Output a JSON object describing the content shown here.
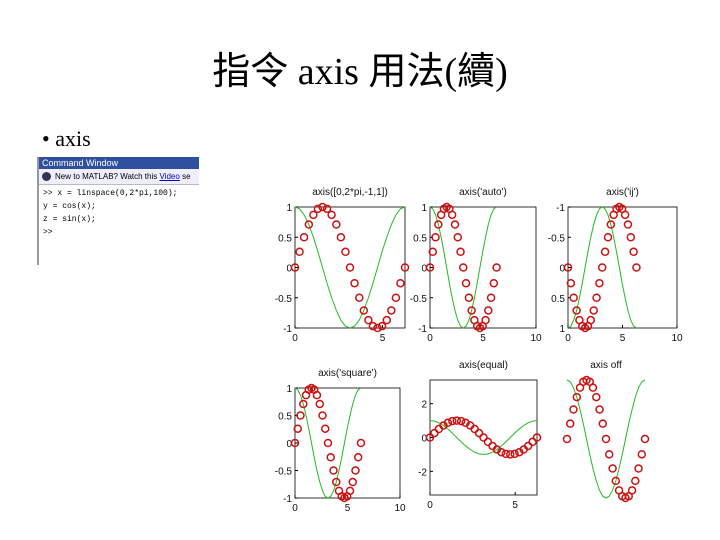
{
  "slide": {
    "title": "指令 axis 用法(續)",
    "bullet": "axis"
  },
  "command_window": {
    "title": "Command Window",
    "notice": "New to MATLAB? Watch this",
    "link": "Video",
    "link_after": "se",
    "lines": [
      ">> x = linspace(0,2*pi,100);",
      "y = cos(x);",
      "z = sin(x);",
      ">>"
    ]
  },
  "chart_data": [
    {
      "type": "line",
      "title": "axis([0,2*pi,-1,1])",
      "x": [
        0,
        0.26,
        0.52,
        0.79,
        1.05,
        1.31,
        1.57,
        1.83,
        2.09,
        2.36,
        2.62,
        2.88,
        3.14,
        3.4,
        3.67,
        3.93,
        4.19,
        4.45,
        4.71,
        4.97,
        5.24,
        5.5,
        5.76,
        6.02,
        6.28
      ],
      "series": [
        {
          "color": "#22bb22",
          "style": "line",
          "values": [
            1,
            0.97,
            0.87,
            0.71,
            0.5,
            0.26,
            0,
            -0.26,
            -0.5,
            -0.71,
            -0.87,
            -0.97,
            -1,
            -0.97,
            -0.87,
            -0.71,
            -0.5,
            -0.26,
            0,
            0.26,
            0.5,
            0.71,
            0.87,
            0.97,
            1
          ]
        },
        {
          "color": "#cc1111",
          "style": "circle",
          "values": [
            0,
            0.26,
            0.5,
            0.71,
            0.87,
            0.97,
            1,
            0.97,
            0.87,
            0.71,
            0.5,
            0.26,
            0,
            -0.26,
            -0.5,
            -0.71,
            -0.87,
            -0.97,
            -1,
            -0.97,
            -0.87,
            -0.71,
            -0.5,
            -0.26,
            0
          ]
        }
      ],
      "xlim": [
        0,
        6.28
      ],
      "ylim": [
        -1,
        1
      ],
      "xticks": [
        0,
        5
      ],
      "yticks": [
        -1,
        -0.5,
        0,
        0.5,
        1
      ],
      "y_reversed": false,
      "axis_visible": true
    },
    {
      "type": "line",
      "title": "axis('auto')",
      "x": [
        0,
        0.26,
        0.52,
        0.79,
        1.05,
        1.31,
        1.57,
        1.83,
        2.09,
        2.36,
        2.62,
        2.88,
        3.14,
        3.4,
        3.67,
        3.93,
        4.19,
        4.45,
        4.71,
        4.97,
        5.24,
        5.5,
        5.76,
        6.02,
        6.28
      ],
      "series": [
        {
          "color": "#22bb22",
          "style": "line",
          "values": [
            1,
            0.97,
            0.87,
            0.71,
            0.5,
            0.26,
            0,
            -0.26,
            -0.5,
            -0.71,
            -0.87,
            -0.97,
            -1,
            -0.97,
            -0.87,
            -0.71,
            -0.5,
            -0.26,
            0,
            0.26,
            0.5,
            0.71,
            0.87,
            0.97,
            1
          ]
        },
        {
          "color": "#cc1111",
          "style": "circle",
          "values": [
            0,
            0.26,
            0.5,
            0.71,
            0.87,
            0.97,
            1,
            0.97,
            0.87,
            0.71,
            0.5,
            0.26,
            0,
            -0.26,
            -0.5,
            -0.71,
            -0.87,
            -0.97,
            -1,
            -0.97,
            -0.87,
            -0.71,
            -0.5,
            -0.26,
            0
          ]
        }
      ],
      "xlim": [
        0,
        10
      ],
      "ylim": [
        -1,
        1
      ],
      "xticks": [
        0,
        5,
        10
      ],
      "yticks": [
        -1,
        -0.5,
        0,
        0.5,
        1
      ],
      "y_reversed": false,
      "axis_visible": true
    },
    {
      "type": "line",
      "title": "axis('ij')",
      "x": [
        0,
        0.26,
        0.52,
        0.79,
        1.05,
        1.31,
        1.57,
        1.83,
        2.09,
        2.36,
        2.62,
        2.88,
        3.14,
        3.4,
        3.67,
        3.93,
        4.19,
        4.45,
        4.71,
        4.97,
        5.24,
        5.5,
        5.76,
        6.02,
        6.28
      ],
      "series": [
        {
          "color": "#22bb22",
          "style": "line",
          "values": [
            1,
            0.97,
            0.87,
            0.71,
            0.5,
            0.26,
            0,
            -0.26,
            -0.5,
            -0.71,
            -0.87,
            -0.97,
            -1,
            -0.97,
            -0.87,
            -0.71,
            -0.5,
            -0.26,
            0,
            0.26,
            0.5,
            0.71,
            0.87,
            0.97,
            1
          ]
        },
        {
          "color": "#cc1111",
          "style": "circle",
          "values": [
            0,
            0.26,
            0.5,
            0.71,
            0.87,
            0.97,
            1,
            0.97,
            0.87,
            0.71,
            0.5,
            0.26,
            0,
            -0.26,
            -0.5,
            -0.71,
            -0.87,
            -0.97,
            -1,
            -0.97,
            -0.87,
            -0.71,
            -0.5,
            -0.26,
            0
          ]
        }
      ],
      "xlim": [
        0,
        10
      ],
      "ylim": [
        -1,
        1
      ],
      "xticks": [
        0,
        5,
        10
      ],
      "yticks": [
        -1,
        -0.5,
        0,
        0.5,
        1
      ],
      "y_reversed": true,
      "axis_visible": true
    },
    {
      "type": "line",
      "title": "axis('square')",
      "x": [
        0,
        0.26,
        0.52,
        0.79,
        1.05,
        1.31,
        1.57,
        1.83,
        2.09,
        2.36,
        2.62,
        2.88,
        3.14,
        3.4,
        3.67,
        3.93,
        4.19,
        4.45,
        4.71,
        4.97,
        5.24,
        5.5,
        5.76,
        6.02,
        6.28
      ],
      "series": [
        {
          "color": "#22bb22",
          "style": "line",
          "values": [
            1,
            0.97,
            0.87,
            0.71,
            0.5,
            0.26,
            0,
            -0.26,
            -0.5,
            -0.71,
            -0.87,
            -0.97,
            -1,
            -0.97,
            -0.87,
            -0.71,
            -0.5,
            -0.26,
            0,
            0.26,
            0.5,
            0.71,
            0.87,
            0.97,
            1
          ]
        },
        {
          "color": "#cc1111",
          "style": "circle",
          "values": [
            0,
            0.26,
            0.5,
            0.71,
            0.87,
            0.97,
            1,
            0.97,
            0.87,
            0.71,
            0.5,
            0.26,
            0,
            -0.26,
            -0.5,
            -0.71,
            -0.87,
            -0.97,
            -1,
            -0.97,
            -0.87,
            -0.71,
            -0.5,
            -0.26,
            0
          ]
        }
      ],
      "xlim": [
        0,
        10
      ],
      "ylim": [
        -1,
        1
      ],
      "xticks": [
        0,
        5,
        10
      ],
      "yticks": [
        -1,
        -0.5,
        0,
        0.5,
        1
      ],
      "y_reversed": false,
      "axis_visible": true
    },
    {
      "type": "line",
      "title": "axis(equal)",
      "x": [
        0,
        0.26,
        0.52,
        0.79,
        1.05,
        1.31,
        1.57,
        1.83,
        2.09,
        2.36,
        2.62,
        2.88,
        3.14,
        3.4,
        3.67,
        3.93,
        4.19,
        4.45,
        4.71,
        4.97,
        5.24,
        5.5,
        5.76,
        6.02,
        6.28
      ],
      "series": [
        {
          "color": "#22bb22",
          "style": "line",
          "values": [
            1,
            0.97,
            0.87,
            0.71,
            0.5,
            0.26,
            0,
            -0.26,
            -0.5,
            -0.71,
            -0.87,
            -0.97,
            -1,
            -0.97,
            -0.87,
            -0.71,
            -0.5,
            -0.26,
            0,
            0.26,
            0.5,
            0.71,
            0.87,
            0.97,
            1
          ]
        },
        {
          "color": "#cc1111",
          "style": "circle",
          "values": [
            0,
            0.26,
            0.5,
            0.71,
            0.87,
            0.97,
            1,
            0.97,
            0.87,
            0.71,
            0.5,
            0.26,
            0,
            -0.26,
            -0.5,
            -0.71,
            -0.87,
            -0.97,
            -1,
            -0.97,
            -0.87,
            -0.71,
            -0.5,
            -0.26,
            0
          ]
        }
      ],
      "xlim": [
        0,
        6.28
      ],
      "ylim": [
        -3.4,
        3.4
      ],
      "xticks": [
        0,
        5
      ],
      "yticks": [
        -2,
        0,
        2
      ],
      "y_reversed": false,
      "axis_visible": true
    },
    {
      "type": "line",
      "title": "axis off",
      "x": [
        0,
        0.26,
        0.52,
        0.79,
        1.05,
        1.31,
        1.57,
        1.83,
        2.09,
        2.36,
        2.62,
        2.88,
        3.14,
        3.4,
        3.67,
        3.93,
        4.19,
        4.45,
        4.71,
        4.97,
        5.24,
        5.5,
        5.76,
        6.02,
        6.28
      ],
      "series": [
        {
          "color": "#22bb22",
          "style": "line",
          "values": [
            1,
            0.97,
            0.87,
            0.71,
            0.5,
            0.26,
            0,
            -0.26,
            -0.5,
            -0.71,
            -0.87,
            -0.97,
            -1,
            -0.97,
            -0.87,
            -0.71,
            -0.5,
            -0.26,
            0,
            0.26,
            0.5,
            0.71,
            0.87,
            0.97,
            1
          ]
        },
        {
          "color": "#cc1111",
          "style": "circle",
          "values": [
            0,
            0.26,
            0.5,
            0.71,
            0.87,
            0.97,
            1,
            0.97,
            0.87,
            0.71,
            0.5,
            0.26,
            0,
            -0.26,
            -0.5,
            -0.71,
            -0.87,
            -0.97,
            -1,
            -0.97,
            -0.87,
            -0.71,
            -0.5,
            -0.26,
            0
          ]
        }
      ],
      "xlim": [
        0,
        6.28
      ],
      "ylim": [
        -1,
        1
      ],
      "y_reversed": false,
      "axis_visible": false
    }
  ]
}
